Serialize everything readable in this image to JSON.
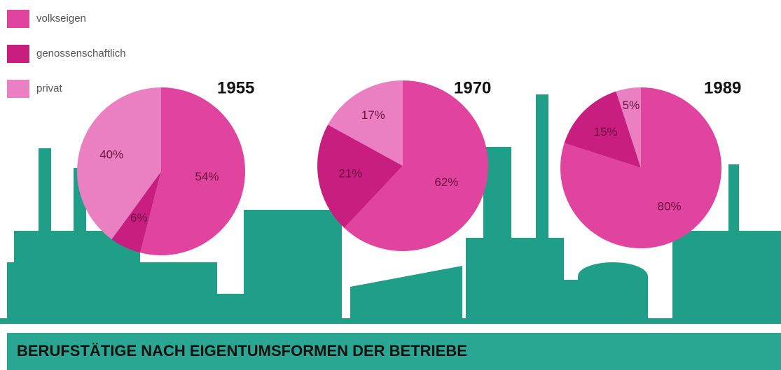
{
  "title": "BERUFSTÄTIGE NACH EIGENTUMSFORMEN DER BETRIEBE",
  "categories": [
    "volkseigen",
    "genossenschaftlich",
    "privat"
  ],
  "colors": [
    "#e0449e",
    "#c81e80",
    "#ea80c2"
  ],
  "chart_data": [
    {
      "type": "pie",
      "title": "1955",
      "values": [
        54,
        6,
        40
      ],
      "value_labels": [
        "54%",
        "6%",
        "40%"
      ]
    },
    {
      "type": "pie",
      "title": "1970",
      "values": [
        62,
        21,
        17
      ],
      "value_labels": [
        "62%",
        "21%",
        "17%"
      ]
    },
    {
      "type": "pie",
      "title": "1989",
      "values": [
        80,
        15,
        5
      ],
      "value_labels": [
        "80%",
        "15%",
        "5%"
      ]
    }
  ]
}
